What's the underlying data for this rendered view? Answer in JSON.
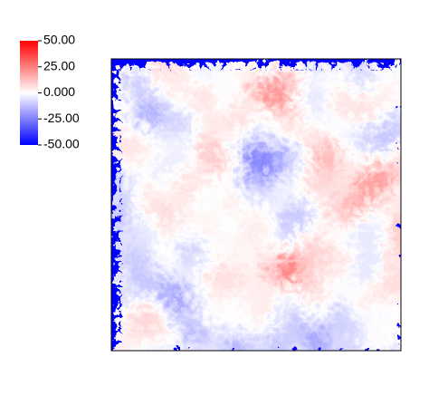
{
  "chart_data": {
    "type": "heatmap",
    "colormap": [
      "#0000ff",
      "#ffffff",
      "#ff0000"
    ],
    "clim": [
      -50,
      50
    ],
    "cticks": [
      {
        "value": 50,
        "label": "50.00"
      },
      {
        "value": 25,
        "label": "25.00"
      },
      {
        "value": 0,
        "label": "0.000"
      },
      {
        "value": -25,
        "label": "-25.00"
      },
      {
        "value": -50,
        "label": "-50.00"
      }
    ]
  }
}
